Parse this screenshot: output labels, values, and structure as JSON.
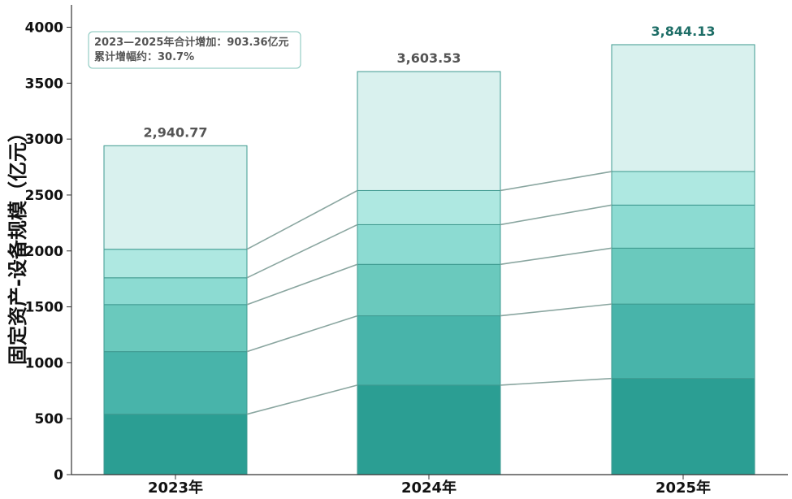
{
  "chart_data": {
    "type": "bar",
    "stacked": true,
    "categories": [
      "2023年",
      "2024年",
      "2025年"
    ],
    "ylabel": "固定资产-设备规模（亿元）",
    "ylim": [
      0,
      4200
    ],
    "yticks": [
      0,
      500,
      1000,
      1500,
      2000,
      2500,
      3000,
      3500,
      4000
    ],
    "series": [
      {
        "values": [
          540,
          800,
          860
        ]
      },
      {
        "values": [
          560,
          620,
          665
        ]
      },
      {
        "values": [
          420,
          460,
          500
        ]
      },
      {
        "values": [
          240,
          355,
          385
        ]
      },
      {
        "values": [
          255,
          305,
          300
        ]
      },
      {
        "values": [
          925.77,
          1063.53,
          1134.13
        ]
      }
    ],
    "totals": [
      "2,940.77",
      "3,603.53",
      "3,844.13"
    ],
    "annotation": {
      "line1": "2023—2025年合计增加：903.36亿元",
      "line2": "累计增幅约：30.7%"
    },
    "colors": {
      "segments": [
        "#2b9e93",
        "#48b4aa",
        "#6ac9bd",
        "#8cdbd2",
        "#aee8e1",
        "#d9f1ee"
      ],
      "bar_edge": "#3f9a90",
      "connector": "#8aa6a0",
      "total_label": "#555555",
      "total_label_last": "#1e6e67",
      "anno_border": "#7fc3b9"
    },
    "grid": false
  }
}
